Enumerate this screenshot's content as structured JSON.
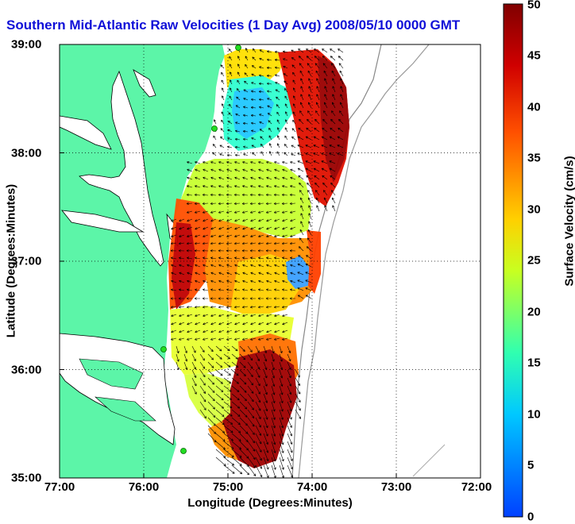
{
  "title": "Southern Mid-Atlantic Raw Velocities (1 Day Avg) 2008/05/10 0000 GMT",
  "axes": {
    "xlabel": "Longitude (Degrees:Minutes)",
    "ylabel": "Latitude (Degrees:Minutes)",
    "x_ticks": [
      "77:00",
      "76:00",
      "75:00",
      "74:00",
      "73:00",
      "72:00"
    ],
    "y_ticks": [
      "39:00",
      "38:00",
      "37:00",
      "36:00",
      "35:00"
    ],
    "xlim": [
      -77,
      -72
    ],
    "ylim": [
      35,
      39
    ],
    "grid": "dotted"
  },
  "colorbar": {
    "label": "Surface Velocity (cm/s)",
    "ticks": [
      "0",
      "5",
      "10",
      "15",
      "20",
      "25",
      "30",
      "35",
      "40",
      "45",
      "50"
    ],
    "range": [
      0,
      50
    ],
    "colors": [
      "#0040ff",
      "#00c8ff",
      "#30ffb0",
      "#c8ff20",
      "#ffd000",
      "#ff5000",
      "#d00000",
      "#800000"
    ]
  },
  "colors": {
    "land": "#5cf5a8",
    "title": "#1010d8",
    "coast": "#000000"
  },
  "stations": [
    {
      "lon": -74.86,
      "lat": 38.95
    },
    {
      "lon": -74.96,
      "lat": 38.25
    },
    {
      "lon": -75.72,
      "lat": 36.2
    },
    {
      "lon": -75.47,
      "lat": 35.25
    }
  ]
}
